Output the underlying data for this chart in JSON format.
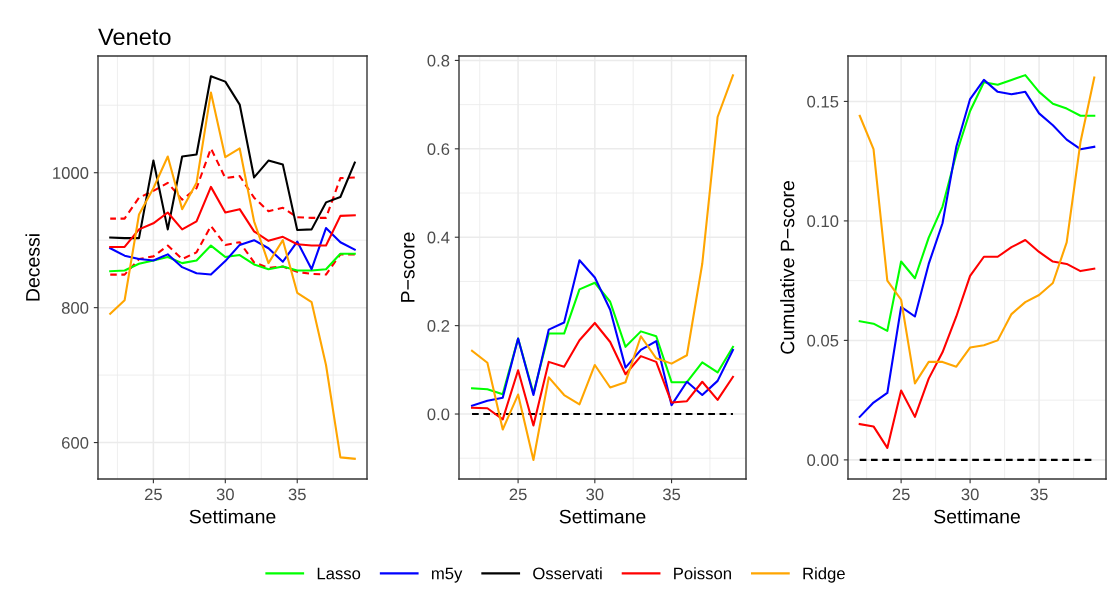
{
  "chart_data": [
    {
      "type": "line",
      "title": "Veneto",
      "xlabel": "Settimane",
      "ylabel": "Decessi",
      "x": [
        22,
        23,
        24,
        25,
        26,
        27,
        28,
        29,
        30,
        31,
        32,
        33,
        34,
        35,
        36,
        37,
        38,
        39
      ],
      "xlim": [
        21.15,
        39.85
      ],
      "xticks": [
        25,
        30,
        35
      ],
      "ylim": [
        546,
        1173
      ],
      "yticks": [
        600,
        800,
        1000
      ],
      "grid": true,
      "legend": "bottom",
      "series": [
        {
          "color": "#ff0000",
          "line_style": "dashed",
          "values": [
            932,
            932,
            963,
            973,
            985,
            960,
            977,
            1036,
            992,
            995,
            963,
            943,
            948,
            934,
            933,
            933,
            992,
            993
          ]
        },
        {
          "color": "#ff0000",
          "line_style": "dashed",
          "values": [
            849,
            849,
            872,
            876,
            892,
            872,
            882,
            921,
            893,
            897,
            867,
            859,
            861,
            853,
            850,
            849,
            879,
            879
          ]
        },
        {
          "name": "Lasso",
          "color": "#00ff00",
          "values": [
            854,
            855,
            865,
            870,
            875,
            866,
            870,
            892,
            875,
            878,
            864,
            857,
            861,
            855,
            855,
            857,
            880,
            880
          ]
        },
        {
          "name": "m5y",
          "color": "#0000ff",
          "values": [
            888,
            877,
            872,
            870,
            879,
            860,
            851,
            849,
            869,
            893,
            900,
            888,
            868,
            898,
            857,
            918,
            897,
            886
          ]
        },
        {
          "name": "Osservati",
          "color": "#000000",
          "values": [
            904,
            903,
            903,
            1018,
            916,
            1024,
            1027,
            1143,
            1135,
            1101,
            993,
            1018,
            1012,
            915,
            916,
            956,
            964,
            1015
          ]
        },
        {
          "name": "Poisson",
          "color": "#ff0000",
          "values": [
            890,
            890,
            916,
            925,
            941,
            916,
            928,
            979,
            941,
            946,
            913,
            899,
            905,
            894,
            892,
            892,
            936,
            937
          ]
        },
        {
          "name": "Ridge",
          "color": "#ffa500",
          "values": [
            791,
            811,
            938,
            977,
            1024,
            946,
            985,
            1119,
            1023,
            1036,
            928,
            866,
            900,
            822,
            808,
            715,
            578,
            576
          ]
        }
      ]
    },
    {
      "type": "line",
      "xlabel": "Settimane",
      "ylabel": "P−score",
      "x": [
        22,
        23,
        24,
        25,
        26,
        27,
        28,
        29,
        30,
        31,
        32,
        33,
        34,
        35,
        36,
        37,
        38,
        39
      ],
      "xlim": [
        21.15,
        39.85
      ],
      "xticks": [
        25,
        30,
        35
      ],
      "ylim": [
        -0.147,
        0.81
      ],
      "yticks": [
        {
          "value": 0,
          "label": "0.0"
        },
        0.2,
        0.4,
        0.6,
        0.8
      ],
      "grid": true,
      "ref_lines": [
        {
          "axis": "y",
          "value": 0,
          "color": "#000000",
          "line_style": "dashed"
        }
      ],
      "series": [
        {
          "name": "Lasso",
          "color": "#00ff00",
          "values": [
            0.058,
            0.056,
            0.045,
            0.171,
            0.047,
            0.182,
            0.182,
            0.282,
            0.297,
            0.254,
            0.152,
            0.187,
            0.176,
            0.072,
            0.072,
            0.117,
            0.094,
            0.152
          ]
        },
        {
          "name": "m5y",
          "color": "#0000ff",
          "values": [
            0.019,
            0.03,
            0.037,
            0.171,
            0.043,
            0.191,
            0.207,
            0.348,
            0.309,
            0.236,
            0.105,
            0.145,
            0.165,
            0.02,
            0.073,
            0.043,
            0.075,
            0.145
          ]
        },
        {
          "name": "Poisson",
          "color": "#ff0000",
          "values": [
            0.014,
            0.013,
            -0.012,
            0.099,
            -0.026,
            0.118,
            0.107,
            0.167,
            0.206,
            0.163,
            0.09,
            0.131,
            0.118,
            0.026,
            0.029,
            0.073,
            0.032,
            0.084
          ]
        },
        {
          "name": "Ridge",
          "color": "#ffa500",
          "values": [
            0.143,
            0.116,
            -0.035,
            0.044,
            -0.104,
            0.083,
            0.043,
            0.022,
            0.111,
            0.06,
            0.072,
            0.176,
            0.126,
            0.114,
            0.133,
            0.34,
            0.672,
            0.766
          ]
        }
      ]
    },
    {
      "type": "line",
      "xlabel": "Settimane",
      "ylabel": "Cumulative P−score",
      "x": [
        22,
        23,
        24,
        25,
        26,
        27,
        28,
        29,
        30,
        31,
        32,
        33,
        34,
        35,
        36,
        37,
        38,
        39
      ],
      "xlim": [
        21.15,
        39.85
      ],
      "xticks": [
        25,
        30,
        35
      ],
      "ylim": [
        -0.008,
        0.169
      ],
      "yticks": [
        {
          "value": 0,
          "label": "0.00"
        },
        {
          "value": 0.05,
          "label": "0.05"
        },
        {
          "value": 0.1,
          "label": "0.10"
        },
        {
          "value": 0.15,
          "label": "0.15"
        }
      ],
      "grid": true,
      "ref_lines": [
        {
          "axis": "y",
          "value": 0,
          "color": "#000000",
          "line_style": "dashed"
        }
      ],
      "series": [
        {
          "name": "Lasso",
          "color": "#00ff00",
          "values": [
            0.058,
            0.057,
            0.054,
            0.083,
            0.076,
            0.093,
            0.106,
            0.128,
            0.146,
            0.158,
            0.157,
            0.159,
            0.161,
            0.154,
            0.149,
            0.147,
            0.144,
            0.144
          ]
        },
        {
          "name": "m5y",
          "color": "#0000ff",
          "values": [
            0.018,
            0.024,
            0.028,
            0.064,
            0.06,
            0.082,
            0.099,
            0.131,
            0.151,
            0.159,
            0.154,
            0.153,
            0.154,
            0.145,
            0.14,
            0.134,
            0.13,
            0.131
          ]
        },
        {
          "name": "Poisson",
          "color": "#ff0000",
          "values": [
            0.015,
            0.014,
            0.005,
            0.029,
            0.018,
            0.034,
            0.045,
            0.06,
            0.077,
            0.085,
            0.085,
            0.089,
            0.092,
            0.087,
            0.083,
            0.082,
            0.079,
            0.08
          ]
        },
        {
          "name": "Ridge",
          "color": "#ffa500",
          "values": [
            0.144,
            0.13,
            0.075,
            0.067,
            0.032,
            0.041,
            0.041,
            0.039,
            0.047,
            0.048,
            0.05,
            0.061,
            0.066,
            0.069,
            0.074,
            0.091,
            0.133,
            0.16
          ]
        }
      ]
    }
  ]
}
